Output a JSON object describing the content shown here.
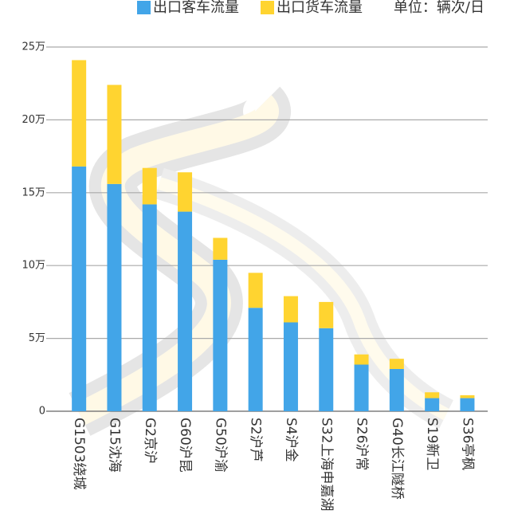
{
  "chart_data": {
    "type": "bar",
    "stacked": true,
    "unit": "单位：辆次/日",
    "categories": [
      "G1503绕城",
      "G15沈海",
      "G2京沪",
      "G60沪昆",
      "G50沪渝",
      "S2沪芦",
      "S4沪金",
      "S32上海申嘉湖",
      "S26沪常",
      "G40长江隧桥",
      "S19新卫",
      "S36亭枫"
    ],
    "series": [
      {
        "name": "出口客车流量",
        "color": "#42a5e8",
        "values": [
          16.8,
          15.6,
          14.2,
          13.7,
          10.4,
          7.1,
          6.1,
          5.7,
          3.2,
          2.9,
          0.9,
          0.9
        ]
      },
      {
        "name": "出口货车流量",
        "color": "#ffd430",
        "values": [
          7.3,
          6.8,
          2.5,
          2.7,
          1.5,
          2.4,
          1.8,
          1.8,
          0.7,
          0.7,
          0.4,
          0.2
        ]
      }
    ],
    "ylim": [
      0,
      25
    ],
    "yticks": [
      0,
      {
        "value": 5,
        "label": "5万"
      },
      {
        "value": 10,
        "label": "10万"
      },
      {
        "value": 15,
        "label": "15万"
      },
      {
        "value": 20,
        "label": "20万"
      },
      {
        "value": 25,
        "label": "25万"
      }
    ],
    "grid": true
  }
}
